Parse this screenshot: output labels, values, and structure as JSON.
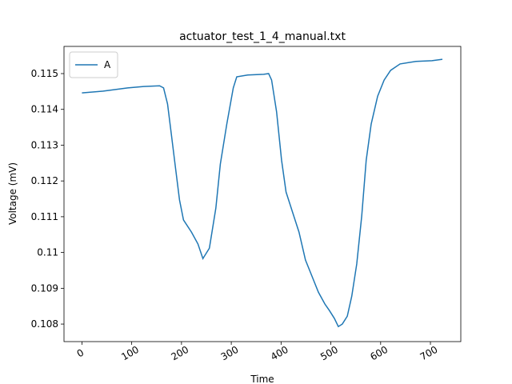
{
  "chart_data": {
    "type": "line",
    "title": "actuator_test_1_4_manual.txt",
    "x_label": "Time",
    "y_label": "Voltage (mV)",
    "x": [
      0,
      43,
      92,
      124,
      156,
      164,
      172,
      180,
      188,
      196,
      204,
      220,
      233,
      243,
      256,
      269,
      278,
      291,
      304,
      311,
      333,
      365,
      375,
      381,
      391,
      401,
      410,
      423,
      436,
      449,
      462,
      475,
      488,
      497,
      507,
      515,
      523,
      533,
      542,
      552,
      562,
      571,
      581,
      594,
      607,
      620,
      639,
      671,
      703,
      724
    ],
    "series": [
      {
        "name": "A",
        "color": "#1f77b4",
        "values": [
          0.11446,
          0.11451,
          0.1146,
          0.11464,
          0.11466,
          0.1146,
          0.11415,
          0.11326,
          0.11236,
          0.11147,
          0.11091,
          0.11057,
          0.11024,
          0.10983,
          0.11012,
          0.11124,
          0.11247,
          0.11359,
          0.1146,
          0.11491,
          0.11496,
          0.11498,
          0.115,
          0.11482,
          0.11393,
          0.11258,
          0.11169,
          0.11113,
          0.11057,
          0.10979,
          0.10934,
          0.10889,
          0.10856,
          0.10838,
          0.10816,
          0.10793,
          0.108,
          0.10822,
          0.10878,
          0.10968,
          0.11102,
          0.11258,
          0.11359,
          0.11437,
          0.11482,
          0.11509,
          0.11527,
          0.11534,
          0.11536,
          0.1154
        ]
      }
    ],
    "xlim": [
      -36,
      761
    ],
    "xticks": [
      0,
      100,
      200,
      300,
      400,
      500,
      600,
      700
    ],
    "ylim": [
      0.10751,
      0.11576
    ],
    "yticks": [
      0.108,
      0.109,
      0.11,
      0.111,
      0.112,
      0.113,
      0.114,
      0.115
    ],
    "legend": "upper left"
  }
}
